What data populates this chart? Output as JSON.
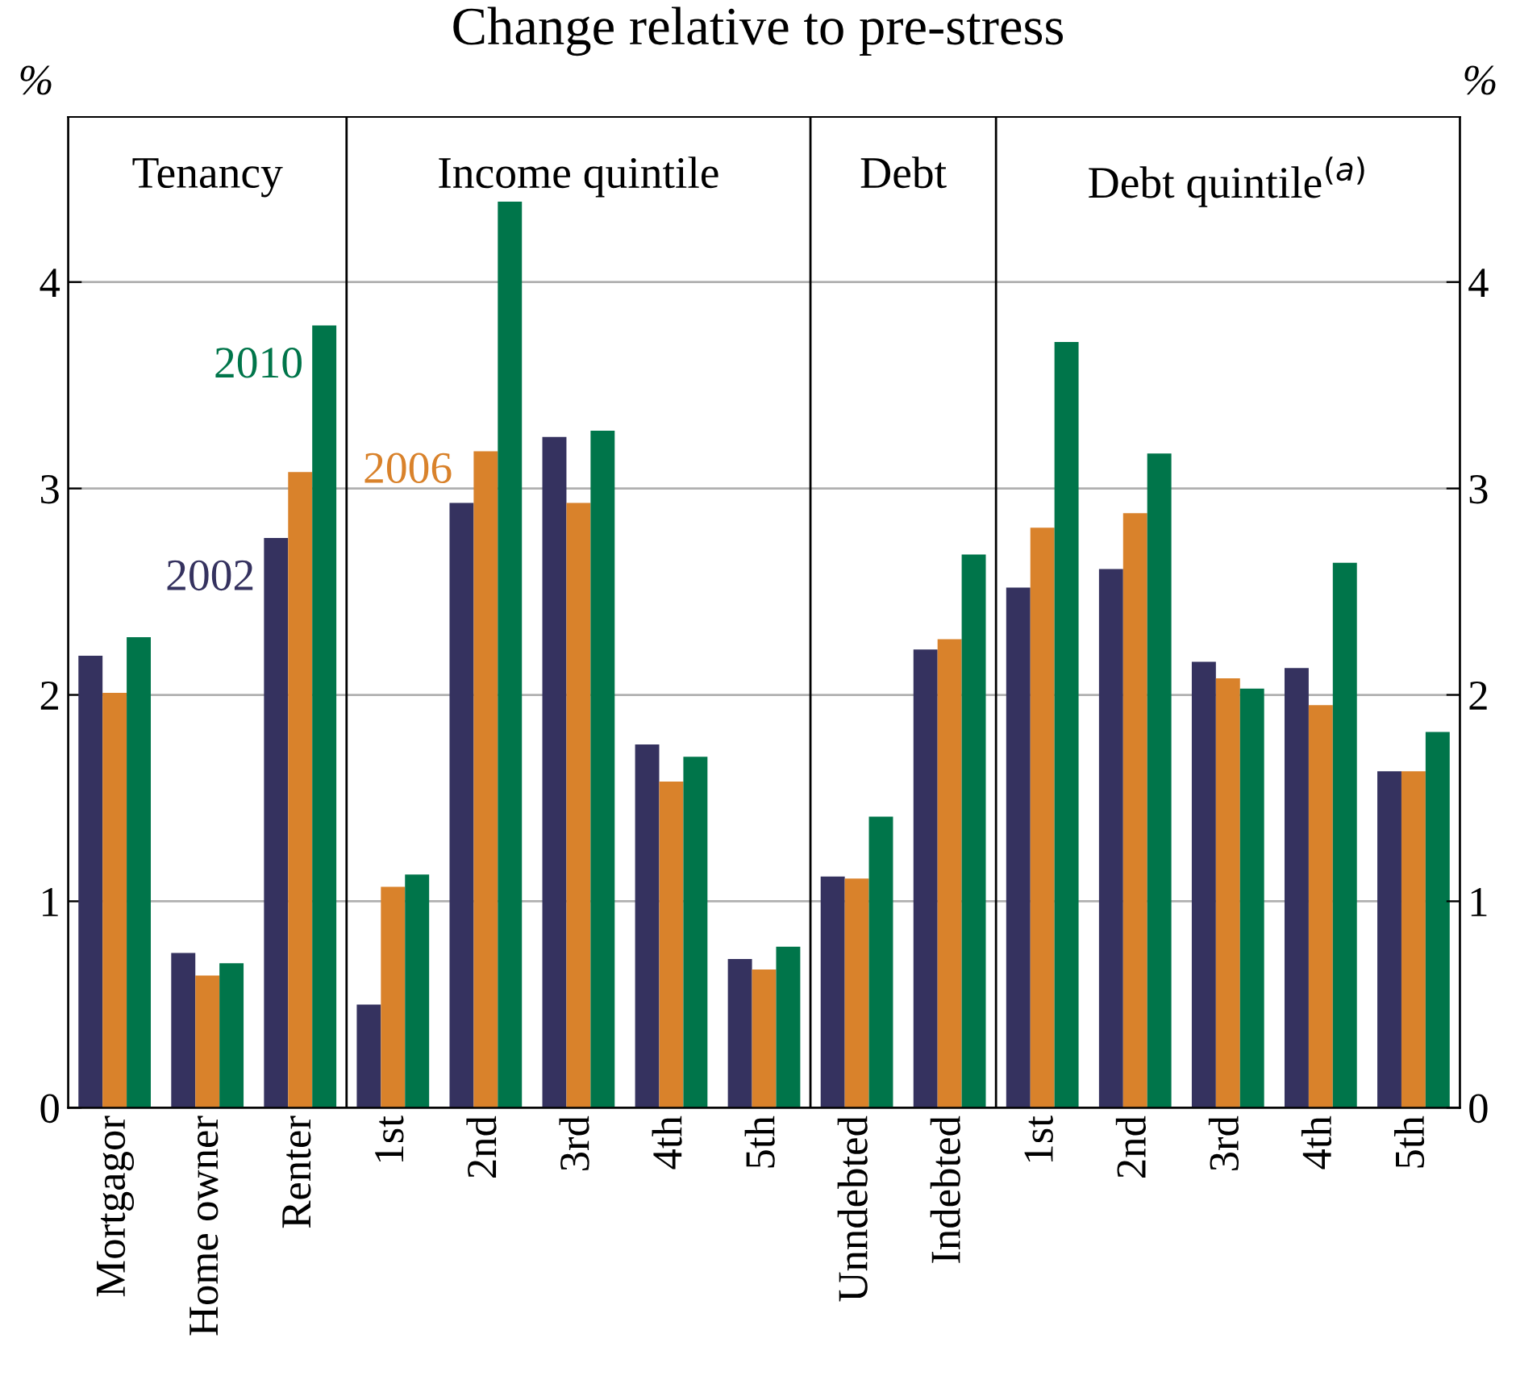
{
  "chart_data": {
    "type": "bar",
    "title": "Change relative to pre-stress",
    "categories": [
      "Mortgagor",
      "Home owner",
      "Renter",
      "1st",
      "2nd",
      "3rd",
      "4th",
      "5th",
      "Unndebted",
      "Indebted",
      "1st",
      "2nd",
      "3rd",
      "4th",
      "5th"
    ],
    "series": [
      {
        "name": "2002",
        "color": "#35325f",
        "values": [
          2.19,
          0.75,
          2.76,
          0.5,
          2.93,
          3.25,
          1.76,
          0.72,
          1.12,
          2.22,
          2.52,
          2.61,
          2.16,
          2.13,
          1.63
        ]
      },
      {
        "name": "2006",
        "color": "#d9822b",
        "values": [
          2.01,
          0.64,
          3.08,
          1.07,
          3.18,
          2.93,
          1.58,
          0.67,
          1.11,
          2.27,
          2.81,
          2.88,
          2.08,
          1.95,
          1.63
        ]
      },
      {
        "name": "2010",
        "color": "#00754a",
        "values": [
          2.28,
          0.7,
          3.79,
          1.13,
          4.39,
          3.28,
          1.7,
          0.78,
          1.41,
          2.68,
          3.71,
          3.17,
          2.03,
          2.64,
          1.82
        ]
      }
    ],
    "ylabel": "%",
    "y2label": "%",
    "ylim": [
      0,
      4.8
    ],
    "yticks": [
      0,
      1,
      2,
      3,
      4
    ],
    "y2lim": [
      0,
      4.8
    ],
    "y2ticks": [
      0,
      1,
      2,
      3,
      4
    ],
    "grid": "y",
    "legend": false,
    "annotations": [
      "Tenancy",
      "Income quintile",
      "Debt",
      "Debt quintile$^{(a)}$"
    ]
  }
}
